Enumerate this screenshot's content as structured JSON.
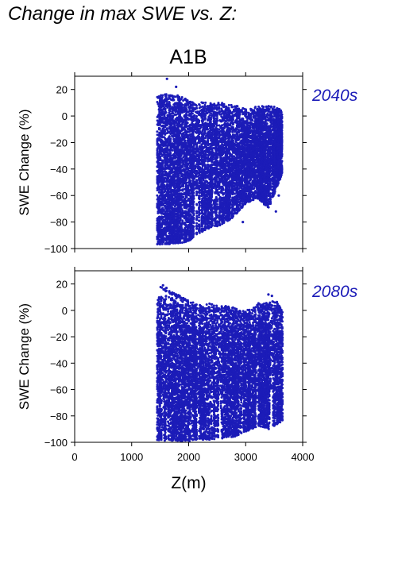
{
  "figure": {
    "title": "Change in max SWE vs. Z:",
    "point_color": "#1c1cb8"
  },
  "chart_data": [
    {
      "type": "scatter",
      "title": "A1B",
      "period_label": "2040s",
      "xlabel": "",
      "ylabel": "SWE Change (%)",
      "xlim": [
        0,
        4000
      ],
      "ylim": [
        -100,
        30
      ],
      "xticks": [
        0,
        1000,
        2000,
        3000,
        4000
      ],
      "yticks": [
        20,
        0,
        -20,
        -40,
        -60,
        -80,
        -100
      ],
      "yticks_labels": [
        "20",
        "0",
        "−20",
        "−40",
        "−60",
        "−80",
        "−100"
      ],
      "show_x_tick_labels": false,
      "grid": false,
      "series": [
        {
          "color": "#1c1cb8",
          "x_range": [
            1450,
            3650
          ],
          "envelope_x": [
            1450,
            1600,
            1800,
            2000,
            2200,
            2400,
            2600,
            2800,
            3000,
            3200,
            3400,
            3600,
            3650
          ],
          "envelope_top": [
            16,
            17,
            16,
            13,
            11,
            10,
            10,
            8,
            6,
            7,
            8,
            6,
            2
          ],
          "envelope_bottom": [
            -97,
            -97,
            -96,
            -95,
            -88,
            -84,
            -82,
            -76,
            -66,
            -62,
            -70,
            -48,
            -42
          ],
          "outliers": [
            {
              "x": 1620,
              "y": 28
            },
            {
              "x": 1780,
              "y": 22
            },
            {
              "x": 1495,
              "y": -96
            },
            {
              "x": 1560,
              "y": -95
            },
            {
              "x": 1700,
              "y": -92
            },
            {
              "x": 1850,
              "y": -90
            },
            {
              "x": 2500,
              "y": -83
            },
            {
              "x": 3530,
              "y": -72
            },
            {
              "x": 3300,
              "y": -63
            },
            {
              "x": 3580,
              "y": -60
            },
            {
              "x": 2950,
              "y": -80
            }
          ]
        }
      ]
    },
    {
      "type": "scatter",
      "title": "",
      "period_label": "2080s",
      "xlabel": "Z(m)",
      "ylabel": "SWE Change (%)",
      "xlim": [
        0,
        4000
      ],
      "ylim": [
        -100,
        30
      ],
      "xticks": [
        0,
        1000,
        2000,
        3000,
        4000
      ],
      "xticks_labels": [
        "0",
        "1000",
        "2000",
        "3000",
        "4000"
      ],
      "yticks": [
        20,
        0,
        -20,
        -40,
        -60,
        -80,
        -100
      ],
      "yticks_labels": [
        "20",
        "0",
        "−20",
        "−40",
        "−60",
        "−80",
        "−100"
      ],
      "show_x_tick_labels": true,
      "grid": false,
      "series": [
        {
          "color": "#1c1cb8",
          "x_range": [
            1450,
            3650
          ],
          "envelope_x": [
            1450,
            1600,
            1800,
            2000,
            2200,
            2400,
            2600,
            2800,
            3000,
            3200,
            3400,
            3600,
            3650
          ],
          "envelope_top": [
            10,
            11,
            9,
            7,
            6,
            5,
            4,
            2,
            0,
            5,
            8,
            6,
            -2
          ],
          "envelope_bottom": [
            -99,
            -99,
            -99,
            -99,
            -98,
            -98,
            -97,
            -96,
            -92,
            -88,
            -90,
            -85,
            -84
          ],
          "upper_band_x": [
            1500,
            2000
          ],
          "upper_band_y": [
            17,
            7
          ],
          "outliers": [
            {
              "x": 1550,
              "y": 19
            },
            {
              "x": 1610,
              "y": 17
            },
            {
              "x": 3400,
              "y": 12
            },
            {
              "x": 3460,
              "y": 11
            },
            {
              "x": 3100,
              "y": -88
            },
            {
              "x": 3300,
              "y": -80
            }
          ]
        }
      ]
    }
  ]
}
